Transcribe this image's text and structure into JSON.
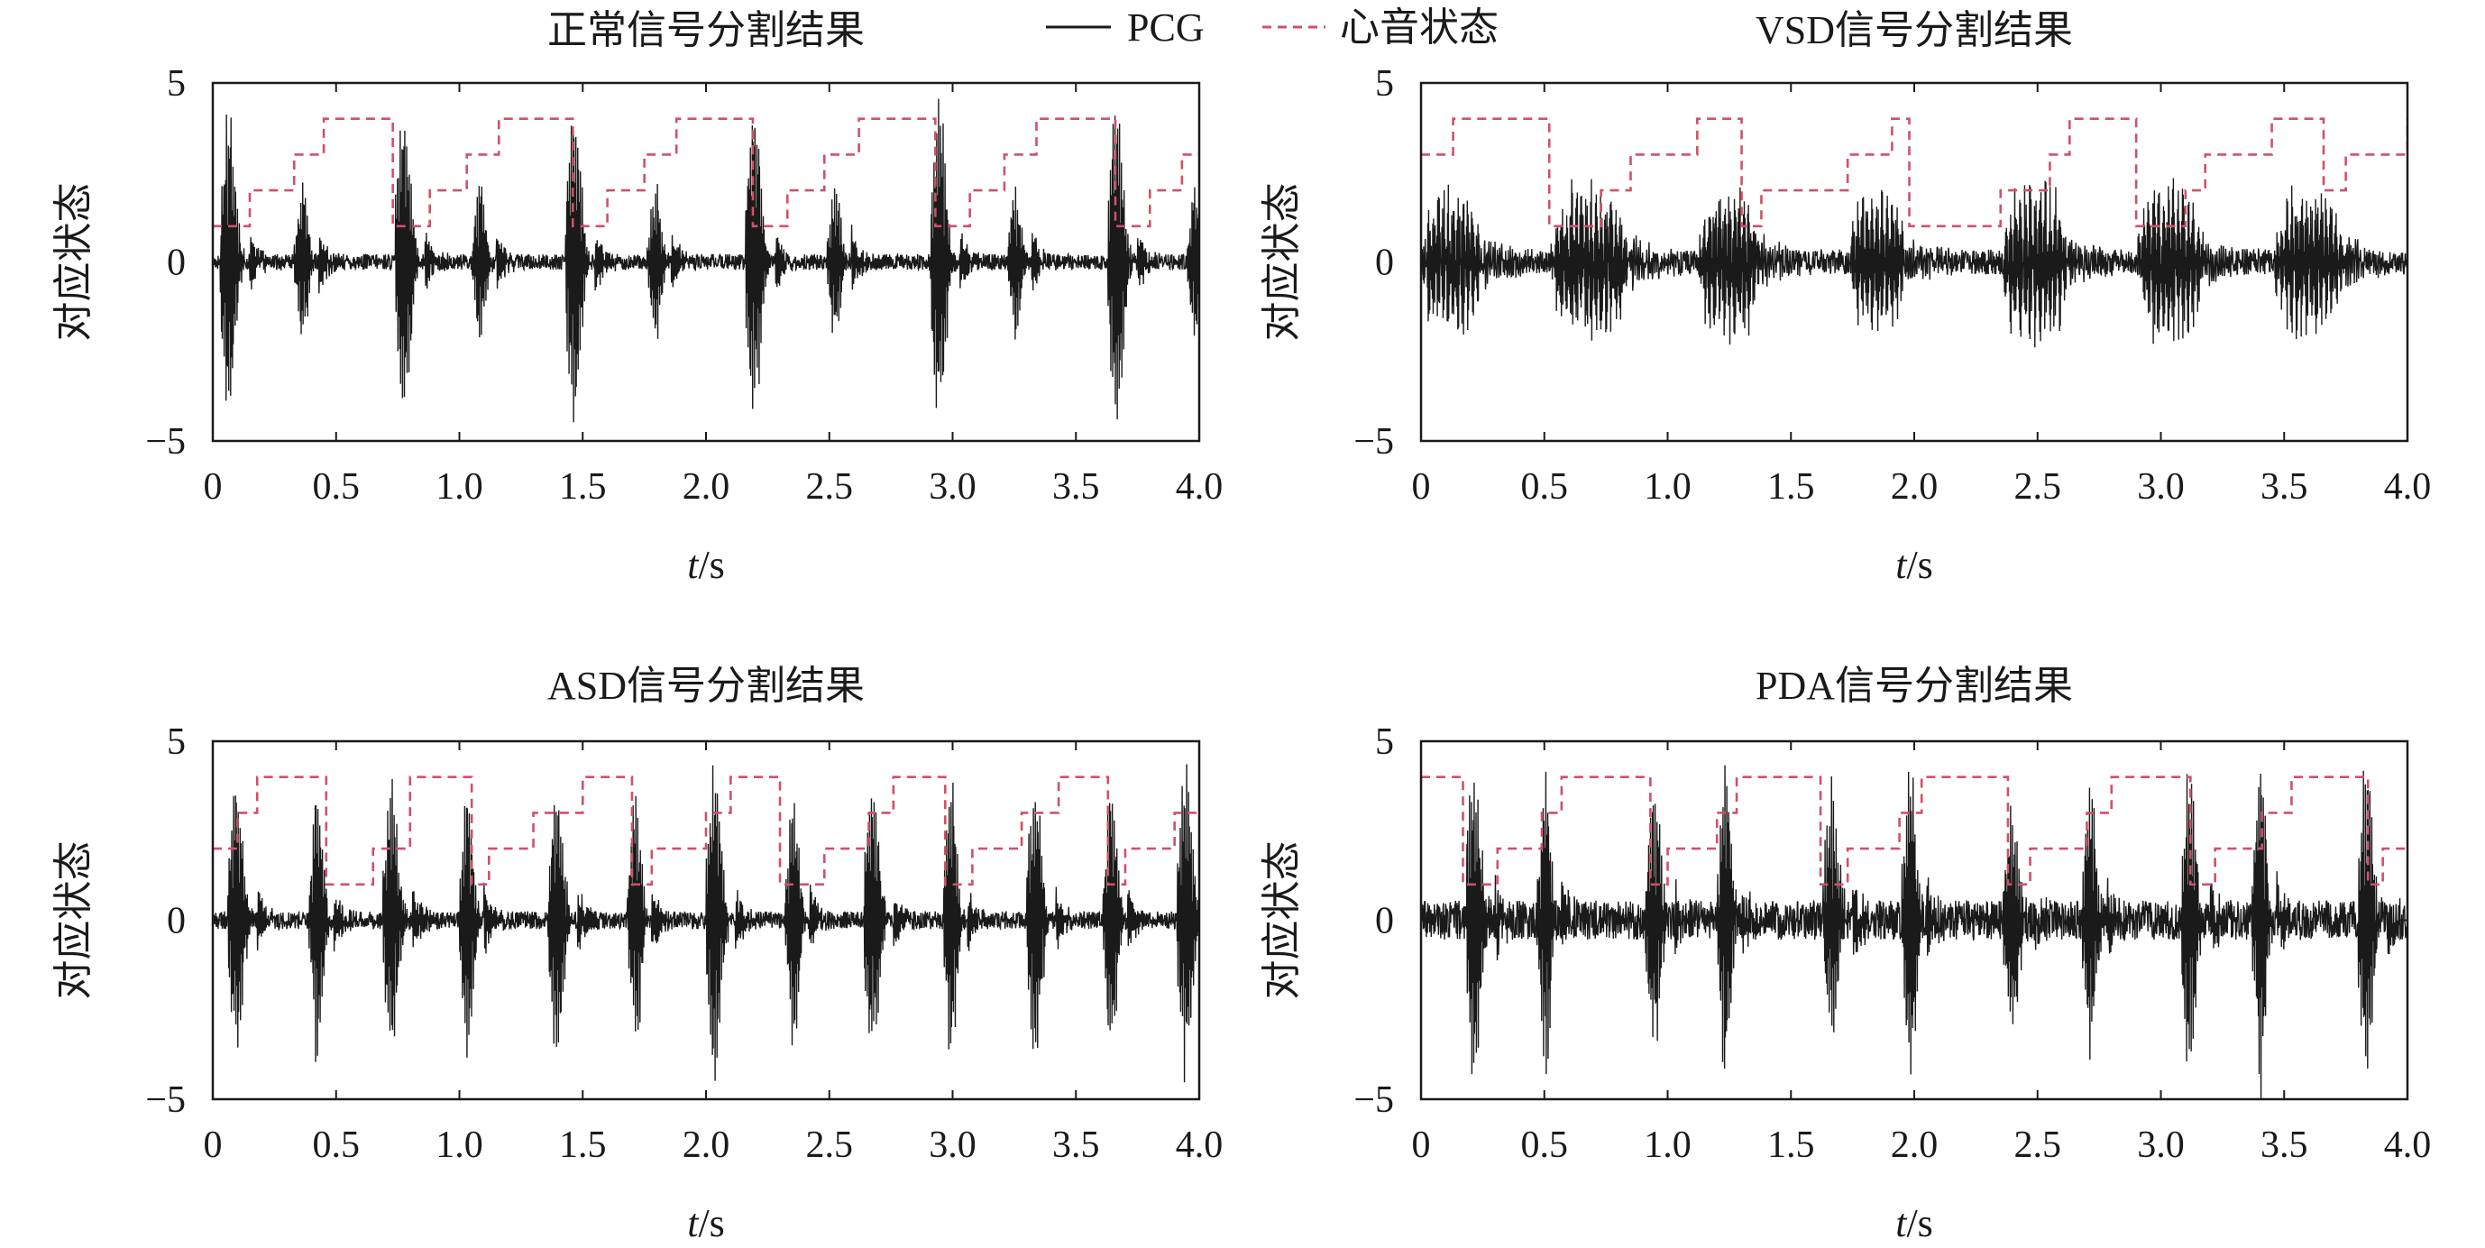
{
  "legend": {
    "pcg_label": "PCG",
    "state_label": "心音状态",
    "pcg_color": "#1a1a1a",
    "state_color": "#d0506a"
  },
  "chart_data": [
    {
      "type": "line",
      "title": "正常信号分割结果",
      "xlabel_italic": "t",
      "xlabel_unit": "/s",
      "ylabel": "对应状态",
      "xlim": [
        0,
        4.0
      ],
      "ylim": [
        -5,
        5
      ],
      "xticks": [
        "0",
        "0.5",
        "1.0",
        "1.5",
        "2.0",
        "2.5",
        "3.0",
        "3.5",
        "4.0"
      ],
      "xtick_values": [
        0,
        0.5,
        1.0,
        1.5,
        2.0,
        2.5,
        3.0,
        3.5,
        4.0
      ],
      "yticks": [
        "5",
        "0",
        "−5"
      ],
      "ytick_values": [
        5,
        0,
        -5
      ],
      "series": [
        {
          "kind": "pcg",
          "noise": 0.22,
          "beats": [
            {
              "t": 0.05,
              "a": 4.8,
              "d": 0.1
            },
            {
              "t": 0.35,
              "a": 2.5,
              "d": 0.08
            },
            {
              "t": 0.76,
              "a": 5.0,
              "d": 0.1
            },
            {
              "t": 1.07,
              "a": 2.4,
              "d": 0.08
            },
            {
              "t": 1.45,
              "a": 5.0,
              "d": 0.1
            },
            {
              "t": 1.78,
              "a": 2.3,
              "d": 0.08
            },
            {
              "t": 2.18,
              "a": 5.0,
              "d": 0.1
            },
            {
              "t": 2.51,
              "a": 2.3,
              "d": 0.08
            },
            {
              "t": 2.93,
              "a": 5.0,
              "d": 0.1
            },
            {
              "t": 3.24,
              "a": 2.3,
              "d": 0.08
            },
            {
              "t": 3.65,
              "a": 5.0,
              "d": 0.1
            },
            {
              "t": 3.97,
              "a": 2.3,
              "d": 0.08
            }
          ]
        },
        {
          "kind": "state",
          "x": [
            0,
            0.15,
            0.33,
            0.45,
            0.73,
            0.88,
            1.03,
            1.16,
            1.46,
            1.6,
            1.75,
            1.88,
            2.19,
            2.33,
            2.48,
            2.62,
            2.93,
            3.07,
            3.21,
            3.34,
            3.66,
            3.8,
            3.93,
            4.0
          ],
          "y": [
            1,
            2,
            3,
            4,
            1,
            2,
            3,
            4,
            1,
            2,
            3,
            4,
            1,
            2,
            3,
            4,
            1,
            2,
            3,
            4,
            1,
            2,
            3,
            3
          ]
        }
      ]
    },
    {
      "type": "line",
      "title": "VSD信号分割结果",
      "xlabel_italic": "t",
      "xlabel_unit": "/s",
      "ylabel": "对应状态",
      "xlim": [
        0,
        4.0
      ],
      "ylim": [
        -5,
        5
      ],
      "xticks": [
        "0",
        "0.5",
        "1.0",
        "1.5",
        "2.0",
        "2.5",
        "3.0",
        "3.5",
        "4.0"
      ],
      "xtick_values": [
        0,
        0.5,
        1.0,
        1.5,
        2.0,
        2.5,
        3.0,
        3.5,
        4.0
      ],
      "yticks": [
        "5",
        "0",
        "−5"
      ],
      "ytick_values": [
        5,
        0,
        -5
      ],
      "series": [
        {
          "kind": "pcg",
          "noise": 0.35,
          "bursts": [
            {
              "t0": 0.0,
              "t1": 0.25,
              "a": 2.2
            },
            {
              "t0": 0.52,
              "t1": 0.85,
              "a": 2.3
            },
            {
              "t0": 1.12,
              "t1": 1.38,
              "a": 2.2
            },
            {
              "t0": 1.73,
              "t1": 1.97,
              "a": 2.1
            },
            {
              "t0": 2.35,
              "t1": 2.63,
              "a": 2.4
            },
            {
              "t0": 2.9,
              "t1": 3.18,
              "a": 2.3
            },
            {
              "t0": 3.45,
              "t1": 3.75,
              "a": 2.2
            }
          ]
        },
        {
          "kind": "state",
          "x": [
            0,
            0.13,
            0.52,
            0.73,
            0.85,
            1.12,
            1.3,
            1.38,
            1.73,
            1.91,
            1.98,
            2.35,
            2.55,
            2.63,
            2.9,
            3.1,
            3.18,
            3.45,
            3.66,
            3.75,
            4.0
          ],
          "y": [
            3,
            4,
            1,
            2,
            3,
            4,
            1,
            2,
            3,
            4,
            1,
            2,
            3,
            4,
            1,
            2,
            3,
            4,
            2,
            3,
            4
          ]
        }
      ]
    },
    {
      "type": "line",
      "title": "ASD信号分割结果",
      "xlabel_italic": "t",
      "xlabel_unit": "/s",
      "ylabel": "对应状态",
      "xlim": [
        0,
        4.0
      ],
      "ylim": [
        -5,
        5
      ],
      "xticks": [
        "0",
        "0.5",
        "1.0",
        "1.5",
        "2.0",
        "2.5",
        "3.0",
        "3.5",
        "4.0"
      ],
      "xtick_values": [
        0,
        0.5,
        1.0,
        1.5,
        2.0,
        2.5,
        3.0,
        3.5,
        4.0
      ],
      "yticks": [
        "5",
        "0",
        "−5"
      ],
      "ytick_values": [
        5,
        0,
        -5
      ],
      "series": [
        {
          "kind": "pcg",
          "noise": 0.25,
          "beats": [
            {
              "t": 0.08,
              "a": 4.2,
              "d": 0.1
            },
            {
              "t": 0.41,
              "a": 4.3,
              "d": 0.08
            },
            {
              "t": 0.71,
              "a": 4.0,
              "d": 0.1
            },
            {
              "t": 1.02,
              "a": 4.4,
              "d": 0.08
            },
            {
              "t": 1.38,
              "a": 4.1,
              "d": 0.1
            },
            {
              "t": 1.7,
              "a": 3.9,
              "d": 0.08
            },
            {
              "t": 2.02,
              "a": 4.6,
              "d": 0.1
            },
            {
              "t": 2.34,
              "a": 4.0,
              "d": 0.08
            },
            {
              "t": 2.66,
              "a": 4.2,
              "d": 0.1
            },
            {
              "t": 2.98,
              "a": 4.1,
              "d": 0.08
            },
            {
              "t": 3.32,
              "a": 4.0,
              "d": 0.1
            },
            {
              "t": 3.63,
              "a": 4.3,
              "d": 0.08
            },
            {
              "t": 3.93,
              "a": 4.6,
              "d": 0.1
            }
          ]
        },
        {
          "kind": "state",
          "x": [
            0,
            0.1,
            0.18,
            0.46,
            0.65,
            0.8,
            1.05,
            1.12,
            1.3,
            1.5,
            1.7,
            1.78,
            2.0,
            2.1,
            2.3,
            2.48,
            2.66,
            2.76,
            2.97,
            3.08,
            3.28,
            3.43,
            3.63,
            3.7,
            3.9,
            4.0
          ],
          "y": [
            2,
            3,
            4,
            1,
            2,
            4,
            1,
            2,
            3,
            4,
            1,
            2,
            3,
            4,
            1,
            2,
            3,
            4,
            1,
            2,
            3,
            4,
            1,
            2,
            3,
            3
          ]
        }
      ]
    },
    {
      "type": "line",
      "title": "PDA信号分割结果",
      "xlabel_italic": "t",
      "xlabel_unit": "/s",
      "ylabel": "对应状态",
      "xlim": [
        0,
        4.0
      ],
      "ylim": [
        -5,
        5
      ],
      "xticks": [
        "0",
        "0.5",
        "1.0",
        "1.5",
        "2.0",
        "2.5",
        "3.0",
        "3.5",
        "4.0"
      ],
      "xtick_values": [
        0,
        0.5,
        1.0,
        1.5,
        2.0,
        2.5,
        3.0,
        3.5,
        4.0
      ],
      "yticks": [
        "5",
        "0",
        "−5"
      ],
      "ytick_values": [
        5,
        0,
        -5
      ],
      "series": [
        {
          "kind": "pcg",
          "noise": 0.55,
          "beats": [
            {
              "t": 0.2,
              "a": 4.8,
              "d": 0.1
            },
            {
              "t": 0.49,
              "a": 4.8,
              "d": 0.08
            },
            {
              "t": 0.93,
              "a": 3.6,
              "d": 0.1
            },
            {
              "t": 1.22,
              "a": 5.0,
              "d": 0.08
            },
            {
              "t": 1.65,
              "a": 3.6,
              "d": 0.1
            },
            {
              "t": 1.97,
              "a": 5.0,
              "d": 0.08
            },
            {
              "t": 2.38,
              "a": 3.5,
              "d": 0.1
            },
            {
              "t": 2.7,
              "a": 4.4,
              "d": 0.08
            },
            {
              "t": 3.1,
              "a": 4.4,
              "d": 0.1
            },
            {
              "t": 3.39,
              "a": 5.0,
              "d": 0.08
            },
            {
              "t": 3.82,
              "a": 4.6,
              "d": 0.1
            }
          ]
        },
        {
          "kind": "state",
          "x": [
            0,
            0.17,
            0.31,
            0.49,
            0.57,
            0.93,
            1.0,
            1.2,
            1.28,
            1.62,
            1.73,
            1.94,
            2.03,
            2.38,
            2.47,
            2.7,
            2.8,
            3.12,
            3.22,
            3.41,
            3.53,
            3.84,
            3.9,
            4.0
          ],
          "y": [
            4,
            1,
            2,
            3,
            4,
            1,
            2,
            3,
            4,
            1,
            2,
            3,
            4,
            1,
            2,
            3,
            4,
            1,
            2,
            3,
            4,
            1,
            2,
            2
          ]
        }
      ]
    }
  ]
}
